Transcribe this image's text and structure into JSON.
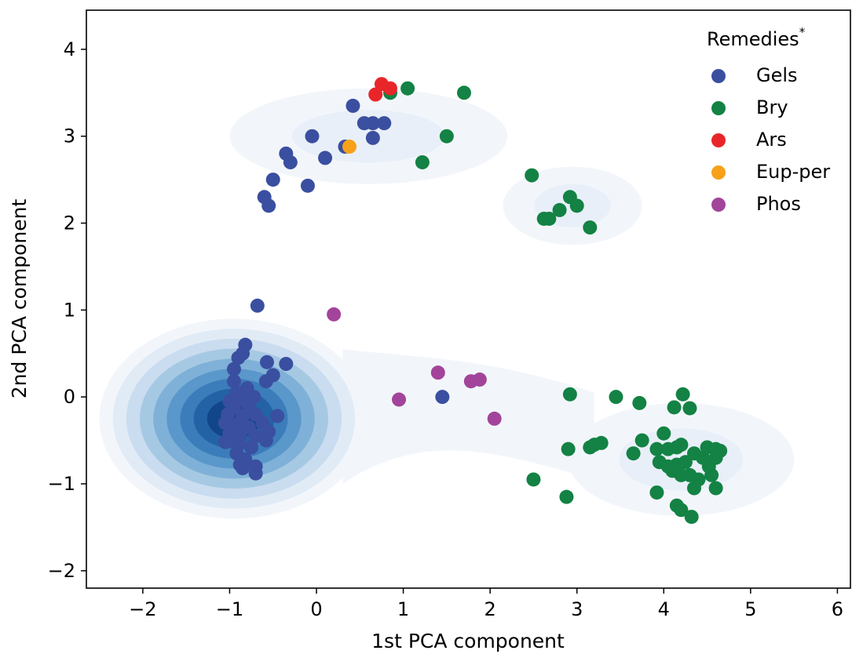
{
  "chart_data": {
    "type": "scatter",
    "title": "",
    "xlabel": "1st PCA component",
    "ylabel": "2nd PCA component",
    "xlim": [
      -2.65,
      6.15
    ],
    "ylim": [
      -2.2,
      4.45
    ],
    "xticks": [
      -2,
      -1,
      0,
      1,
      2,
      3,
      4,
      5,
      6
    ],
    "yticks": [
      -2,
      -1,
      0,
      1,
      2,
      3,
      4
    ],
    "grid": false,
    "legend": {
      "title": "Remedies",
      "title_marker": "*",
      "placement": "top-right"
    },
    "series": [
      {
        "name": "Gels",
        "color": "#3a4fa0",
        "points": [
          [
            -0.3,
            2.7
          ],
          [
            -0.55,
            2.2
          ],
          [
            -0.6,
            2.3
          ],
          [
            -0.5,
            2.5
          ],
          [
            -0.35,
            2.8
          ],
          [
            -0.05,
            3.0
          ],
          [
            0.1,
            2.75
          ],
          [
            -0.1,
            2.43
          ],
          [
            0.42,
            3.35
          ],
          [
            0.55,
            3.15
          ],
          [
            0.65,
            3.15
          ],
          [
            0.78,
            3.15
          ],
          [
            0.65,
            2.98
          ],
          [
            0.33,
            2.88
          ],
          [
            -0.68,
            1.05
          ],
          [
            -0.82,
            0.6
          ],
          [
            -0.85,
            0.5
          ],
          [
            -0.9,
            0.45
          ],
          [
            -0.57,
            0.4
          ],
          [
            -0.35,
            0.38
          ],
          [
            -0.95,
            0.32
          ],
          [
            -0.5,
            0.25
          ],
          [
            -0.58,
            0.18
          ],
          [
            -0.95,
            0.18
          ],
          [
            -0.8,
            0.1
          ],
          [
            -0.92,
            0.05
          ],
          [
            -0.72,
            0.0
          ],
          [
            -0.88,
            -0.02
          ],
          [
            -1.0,
            -0.05
          ],
          [
            -0.78,
            -0.1
          ],
          [
            -0.95,
            -0.12
          ],
          [
            -1.02,
            -0.2
          ],
          [
            -0.85,
            -0.22
          ],
          [
            -0.7,
            -0.2
          ],
          [
            -0.45,
            -0.22
          ],
          [
            -1.05,
            -0.3
          ],
          [
            -0.92,
            -0.32
          ],
          [
            -0.78,
            -0.35
          ],
          [
            -0.62,
            -0.3
          ],
          [
            -1.0,
            -0.42
          ],
          [
            -0.88,
            -0.45
          ],
          [
            -0.7,
            -0.45
          ],
          [
            -0.55,
            -0.4
          ],
          [
            -1.05,
            -0.52
          ],
          [
            -0.9,
            -0.55
          ],
          [
            -0.75,
            -0.58
          ],
          [
            -0.58,
            -0.5
          ],
          [
            -0.92,
            -0.65
          ],
          [
            -0.82,
            -0.72
          ],
          [
            -0.88,
            -0.78
          ],
          [
            -0.85,
            -0.82
          ],
          [
            -0.7,
            -0.8
          ],
          [
            -0.7,
            -0.88
          ],
          [
            1.45,
            0.0
          ]
        ]
      },
      {
        "name": "Bry",
        "color": "#138244",
        "points": [
          [
            0.85,
            3.5
          ],
          [
            1.05,
            3.55
          ],
          [
            1.7,
            3.5
          ],
          [
            1.5,
            3.0
          ],
          [
            1.22,
            2.7
          ],
          [
            2.48,
            2.55
          ],
          [
            2.62,
            2.05
          ],
          [
            2.68,
            2.05
          ],
          [
            2.8,
            2.15
          ],
          [
            2.92,
            2.3
          ],
          [
            3.0,
            2.2
          ],
          [
            3.15,
            1.95
          ],
          [
            2.92,
            0.03
          ],
          [
            3.45,
            0.0
          ],
          [
            3.72,
            -0.07
          ],
          [
            4.22,
            0.03
          ],
          [
            4.12,
            -0.12
          ],
          [
            4.3,
            -0.13
          ],
          [
            3.75,
            -0.5
          ],
          [
            4.0,
            -0.42
          ],
          [
            3.15,
            -0.58
          ],
          [
            3.2,
            -0.55
          ],
          [
            3.28,
            -0.53
          ],
          [
            3.65,
            -0.65
          ],
          [
            2.9,
            -0.6
          ],
          [
            3.92,
            -0.6
          ],
          [
            4.05,
            -0.6
          ],
          [
            4.15,
            -0.58
          ],
          [
            4.2,
            -0.55
          ],
          [
            4.35,
            -0.65
          ],
          [
            4.45,
            -0.7
          ],
          [
            4.5,
            -0.58
          ],
          [
            4.6,
            -0.6
          ],
          [
            4.65,
            -0.62
          ],
          [
            4.6,
            -0.7
          ],
          [
            3.95,
            -0.75
          ],
          [
            4.05,
            -0.8
          ],
          [
            4.15,
            -0.78
          ],
          [
            4.25,
            -0.75
          ],
          [
            4.1,
            -0.85
          ],
          [
            4.2,
            -0.9
          ],
          [
            4.3,
            -0.9
          ],
          [
            4.4,
            -0.95
          ],
          [
            4.55,
            -0.9
          ],
          [
            4.52,
            -0.8
          ],
          [
            4.35,
            -1.05
          ],
          [
            4.6,
            -1.05
          ],
          [
            3.92,
            -1.1
          ],
          [
            4.15,
            -1.25
          ],
          [
            4.2,
            -1.3
          ],
          [
            4.32,
            -1.38
          ],
          [
            2.5,
            -0.95
          ],
          [
            2.88,
            -1.15
          ]
        ]
      },
      {
        "name": "Ars",
        "color": "#e8262a",
        "points": [
          [
            0.75,
            3.6
          ],
          [
            0.85,
            3.55
          ],
          [
            0.68,
            3.48
          ]
        ]
      },
      {
        "name": "Eup-per",
        "color": "#f7a11a",
        "points": [
          [
            0.38,
            2.88
          ]
        ]
      },
      {
        "name": "Phos",
        "color": "#a3449b",
        "points": [
          [
            0.2,
            0.95
          ],
          [
            1.4,
            0.28
          ],
          [
            1.78,
            0.18
          ],
          [
            1.88,
            0.2
          ],
          [
            0.95,
            -0.03
          ],
          [
            2.05,
            -0.25
          ]
        ]
      }
    ],
    "density_background": {
      "colormap": "Blues",
      "levels": 9,
      "description_peaks": [
        {
          "center": [
            -0.95,
            -0.25
          ],
          "rx": 1.55,
          "ry": 1.15,
          "intensity": "high"
        },
        {
          "center": [
            0.6,
            3.0
          ],
          "rx": 1.6,
          "ry": 0.55,
          "intensity": "low"
        },
        {
          "center": [
            2.95,
            2.2
          ],
          "rx": 0.8,
          "ry": 0.45,
          "intensity": "low"
        },
        {
          "center": [
            4.2,
            -0.72
          ],
          "rx": 1.3,
          "ry": 0.65,
          "intensity": "low"
        }
      ]
    }
  }
}
